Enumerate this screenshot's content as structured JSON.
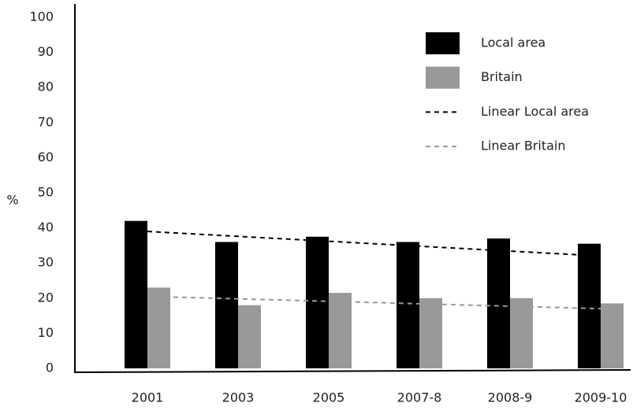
{
  "chart_data": {
    "type": "bar",
    "y_label": "%",
    "categories": [
      "2001",
      "2003",
      "2005",
      "2007-8",
      "2008-9",
      "2009-10"
    ],
    "series": [
      {
        "name": "Local area",
        "color": "#000000",
        "values": [
          42,
          36,
          37.5,
          36,
          37,
          35.5
        ]
      },
      {
        "name": "Britain",
        "color": "#999999",
        "values": [
          23,
          18,
          21.5,
          20,
          20,
          18.5
        ]
      },
      {
        "name": "Linear Local area",
        "type": "line",
        "dashed": true,
        "color": "#000000",
        "values": [
          39,
          37.6,
          36.2,
          34.8,
          33.4,
          32
        ]
      },
      {
        "name": "Linear Britain",
        "type": "line",
        "dashed": true,
        "color": "#999999",
        "values": [
          20.5,
          19.8,
          19.1,
          18.4,
          17.7,
          17
        ]
      }
    ],
    "ylim": [
      0,
      100
    ],
    "yticks": [
      0,
      10,
      20,
      30,
      40,
      50,
      60,
      70,
      80,
      90,
      100
    ],
    "grid": false,
    "legend": "top-right"
  }
}
